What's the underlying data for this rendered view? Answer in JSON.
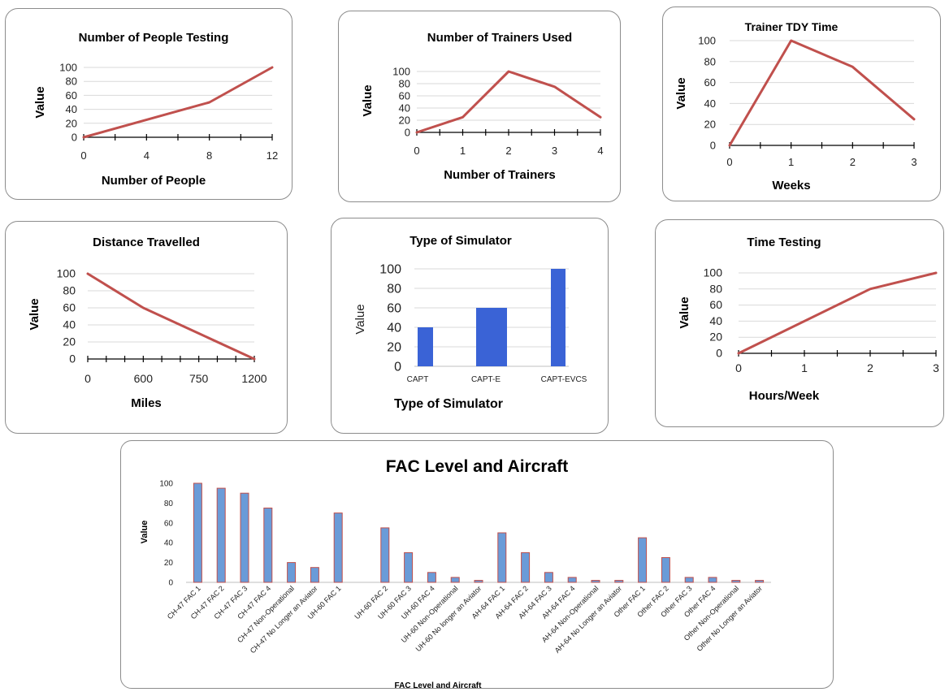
{
  "colors": {
    "line": "#c0504d",
    "bar": "#3a63d6",
    "bar_big_fill": "#6a9bd8",
    "bar_big_stroke": "#c0504d",
    "grid": "#d9d9d9",
    "axis": "#000000"
  },
  "chart_data": [
    {
      "type": "line",
      "title": "Number of People Testing",
      "xlabel": "Number of People",
      "ylabel": "Value",
      "x": [
        0,
        8,
        12
      ],
      "y": [
        0,
        50,
        100
      ],
      "xticks": [
        0,
        4,
        8,
        12
      ],
      "yticks": [
        0,
        20,
        40,
        60,
        80,
        100
      ],
      "xlim": [
        0,
        12
      ],
      "ylim": [
        0,
        100
      ],
      "grid": true
    },
    {
      "type": "line",
      "title": "Number of Trainers Used",
      "xlabel": "Number of Trainers",
      "ylabel": "Value",
      "x": [
        0,
        1,
        2,
        3,
        4
      ],
      "y": [
        0,
        25,
        100,
        75,
        25
      ],
      "xticks": [
        0,
        1,
        2,
        3,
        4
      ],
      "yticks": [
        0,
        20,
        40,
        60,
        80,
        100
      ],
      "xlim": [
        0,
        4
      ],
      "ylim": [
        0,
        100
      ],
      "grid": true
    },
    {
      "type": "line",
      "title": "Trainer TDY Time",
      "xlabel": "Weeks",
      "ylabel": "Value",
      "x": [
        0,
        1,
        2,
        3
      ],
      "y": [
        0,
        100,
        75,
        25
      ],
      "xticks": [
        0,
        1,
        2,
        3
      ],
      "yticks": [
        0,
        20,
        40,
        60,
        80,
        100
      ],
      "xlim": [
        0,
        3
      ],
      "ylim": [
        0,
        100
      ],
      "grid": true
    },
    {
      "type": "line",
      "title": "Distance Travelled",
      "xlabel": "Miles",
      "ylabel": "Value",
      "x": [
        "0",
        "600",
        "750",
        "1200"
      ],
      "y": [
        100,
        60,
        30,
        0
      ],
      "xticks": [
        "0",
        "600",
        "750",
        "1200"
      ],
      "yticks": [
        0,
        20,
        40,
        60,
        80,
        100
      ],
      "ylim": [
        0,
        100
      ],
      "grid": true
    },
    {
      "type": "bar",
      "title": "Type of Simulator",
      "xlabel": "Type of Simulator",
      "ylabel": "Value",
      "categories": [
        "CAPT",
        "CAPT-E",
        "CAPT-EVCS"
      ],
      "values": [
        40,
        60,
        100
      ],
      "yticks": [
        0,
        20,
        40,
        60,
        80,
        100
      ],
      "ylim": [
        0,
        100
      ],
      "grid": true
    },
    {
      "type": "line",
      "title": "Time Testing",
      "xlabel": "Hours/Week",
      "ylabel": "Value",
      "x": [
        0,
        2,
        3
      ],
      "y": [
        0,
        80,
        100
      ],
      "xticks": [
        0,
        1,
        2,
        3
      ],
      "yticks": [
        0,
        20,
        40,
        60,
        80,
        100
      ],
      "xlim": [
        0,
        3
      ],
      "ylim": [
        0,
        100
      ],
      "grid": true
    },
    {
      "type": "bar",
      "title": "FAC Level and Aircraft",
      "xlabel": "FAC Level and Aircraft",
      "ylabel": "Value",
      "categories": [
        "CH-47 FAC 1",
        "CH-47 FAC 2",
        "CH-47 FAC 3",
        "CH-47 FAC 4",
        "CH-47 Non-Operational",
        "CH-47 No Longer an Aviator",
        "UH-60 FAC 1",
        "",
        "UH-60 FAC 2",
        "UH-60 FAC 3",
        "UH-60 FAC 4",
        "UH-60 Non-Operational",
        "UH-60 No longer an Aviator",
        "AH-64 FAC 1",
        "AH-64 FAC 2",
        "AH-64 FAC 3",
        "AH-64 FAC 4",
        "AH-64 Non-Operational",
        "AH-64 No Longer an Aviator",
        "Other FAC 1",
        "Other FAC 2",
        "Other FAC 3",
        "Other FAC 4",
        "Other Non-Operational",
        "Other No Longer an Aviator"
      ],
      "values": [
        100,
        95,
        90,
        75,
        20,
        15,
        70,
        0,
        55,
        30,
        10,
        5,
        2,
        50,
        30,
        10,
        5,
        2,
        2,
        45,
        25,
        5,
        5,
        2,
        2
      ],
      "yticks": [
        0,
        20,
        40,
        60,
        80,
        100
      ],
      "ylim": [
        0,
        100
      ],
      "grid": true
    }
  ]
}
